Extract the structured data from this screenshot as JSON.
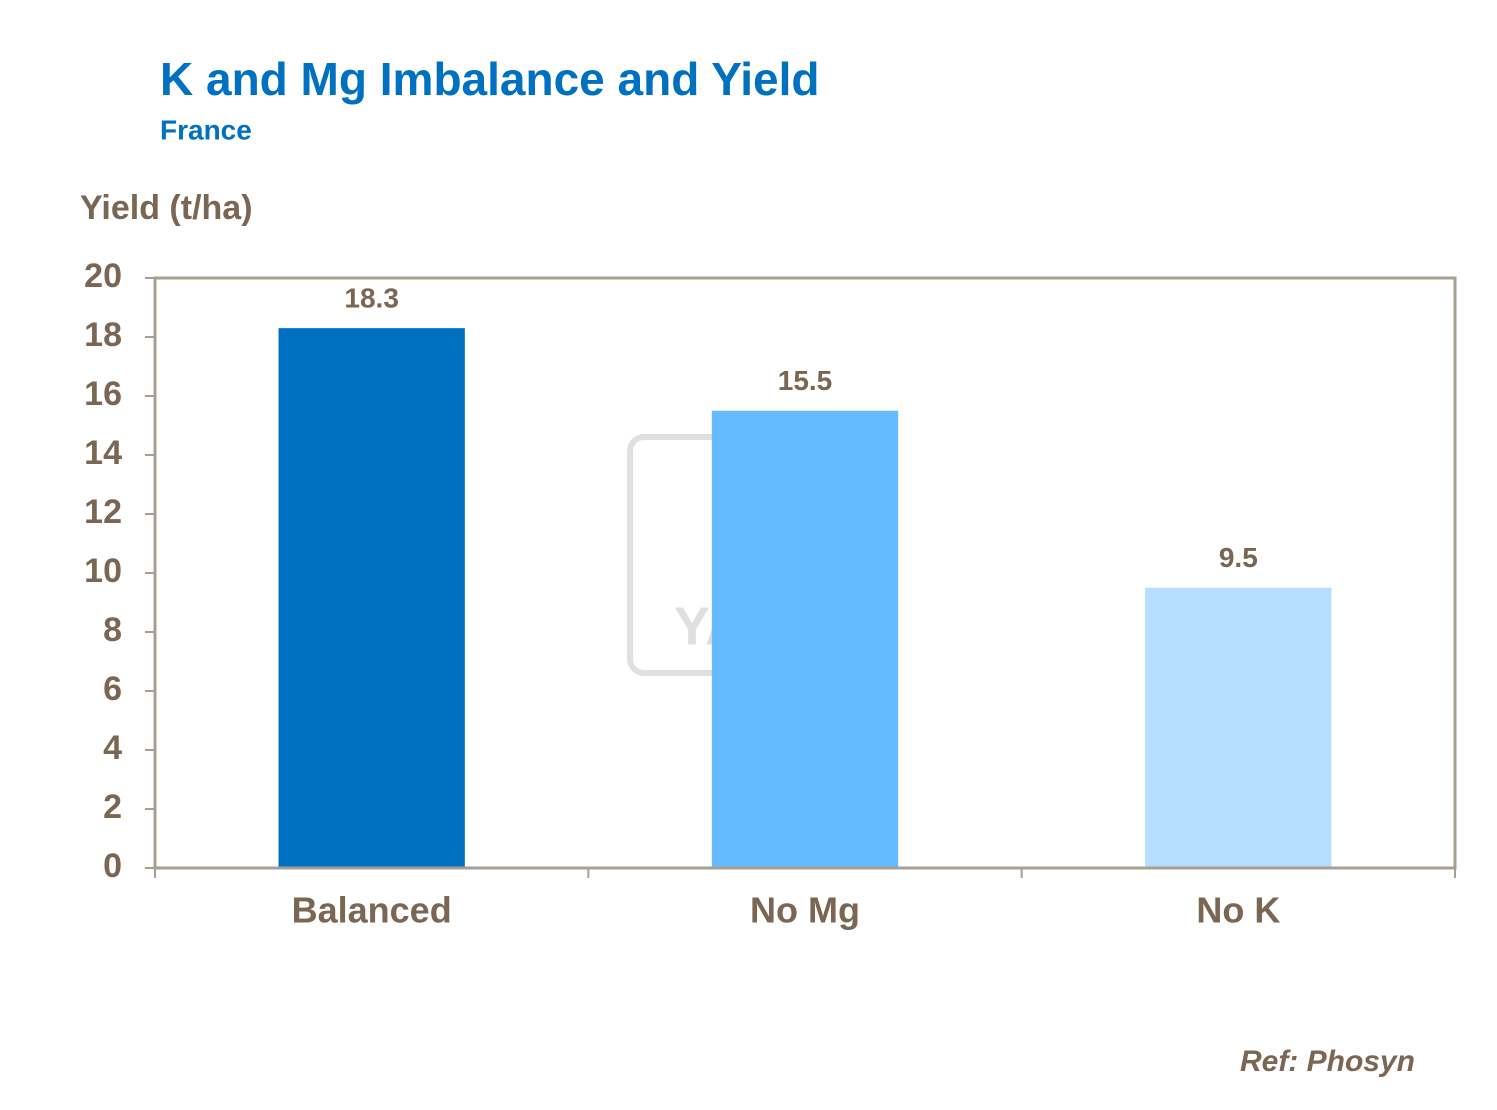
{
  "chart_data": {
    "type": "bar",
    "title": "K and Mg Imbalance and Yield",
    "subtitle": "France",
    "y_label": "Yield (t/ha)",
    "categories": [
      "Balanced",
      "No Mg",
      "No K"
    ],
    "values": [
      18.3,
      15.5,
      9.5
    ],
    "colors": [
      "#0070c0",
      "#66bbff",
      "#b8defd"
    ],
    "ylim": [
      0,
      20
    ],
    "yticks": [
      0,
      2,
      4,
      6,
      8,
      10,
      12,
      14,
      16,
      18,
      20
    ],
    "watermark": "YARA",
    "source": "Ref: Phosyn"
  }
}
